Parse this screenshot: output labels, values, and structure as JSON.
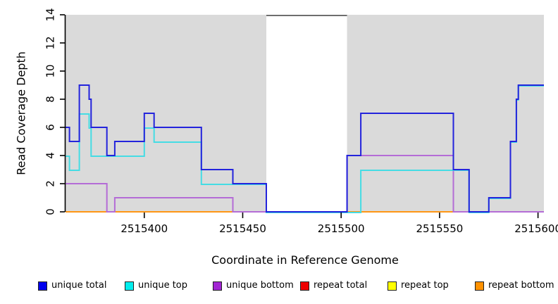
{
  "chart_data": {
    "type": "line",
    "subtype": "step",
    "title": "",
    "xlabel": "Coordinate in Reference Genome",
    "ylabel": "Read Coverage Depth",
    "xlim": [
      2515360,
      2515603
    ],
    "ylim": [
      0,
      14
    ],
    "x_ticks": [
      "2515400",
      "2515450",
      "2515500",
      "2515550",
      "2515600"
    ],
    "y_ticks": [
      "0",
      "2",
      "4",
      "6",
      "8",
      "10",
      "12",
      "14"
    ],
    "grid": false,
    "panel_bg": "#DADADA",
    "masked_region": {
      "x_start": 2515462,
      "x_end": 2515503,
      "fill": "#FFFFFF",
      "top_border_color": "#6E6E6E"
    },
    "series": [
      {
        "name": "unique total",
        "color": "#2323DC",
        "x_end": 2515603,
        "steps": [
          [
            2515360,
            6
          ],
          [
            2515362,
            5
          ],
          [
            2515367,
            9
          ],
          [
            2515372,
            8
          ],
          [
            2515373,
            6
          ],
          [
            2515381,
            4
          ],
          [
            2515385,
            5
          ],
          [
            2515400,
            7
          ],
          [
            2515405,
            6
          ],
          [
            2515429,
            3
          ],
          [
            2515445,
            2
          ],
          [
            2515462,
            0
          ],
          [
            2515503,
            4
          ],
          [
            2515510,
            7
          ],
          [
            2515557,
            3
          ],
          [
            2515565,
            0
          ],
          [
            2515575,
            1
          ],
          [
            2515586,
            5
          ],
          [
            2515589,
            8
          ],
          [
            2515590,
            9
          ]
        ]
      },
      {
        "name": "unique top",
        "color": "#45DCE4",
        "x_end": 2515603,
        "steps": [
          [
            2515360,
            4
          ],
          [
            2515362,
            3
          ],
          [
            2515367,
            7
          ],
          [
            2515372,
            6
          ],
          [
            2515373,
            4
          ],
          [
            2515400,
            6
          ],
          [
            2515405,
            5
          ],
          [
            2515429,
            2
          ],
          [
            2515462,
            0
          ],
          [
            2515510,
            3
          ],
          [
            2515565,
            0
          ],
          [
            2515575,
            1
          ],
          [
            2515586,
            5
          ],
          [
            2515589,
            8
          ],
          [
            2515590,
            9
          ]
        ]
      },
      {
        "name": "unique bottom",
        "color": "#B46CD6",
        "x_end": 2515603,
        "steps": [
          [
            2515360,
            2
          ],
          [
            2515381,
            0
          ],
          [
            2515385,
            1
          ],
          [
            2515445,
            0
          ],
          [
            2515503,
            4
          ],
          [
            2515557,
            0
          ]
        ]
      },
      {
        "name": "repeat total",
        "color": "#D6496A",
        "x_end": 2515603,
        "steps": [
          [
            2515360,
            0
          ]
        ]
      },
      {
        "name": "repeat top",
        "color": "#EDED1A",
        "x_end": 2515603,
        "steps": [
          [
            2515360,
            0
          ]
        ]
      },
      {
        "name": "repeat bottom",
        "color": "#FF9614",
        "x_end": 2515603,
        "steps": [
          [
            2515360,
            0
          ]
        ]
      }
    ],
    "draw_order": [
      "repeat top",
      "repeat total",
      "repeat bottom",
      "unique bottom",
      "unique top",
      "unique total"
    ],
    "legend": [
      {
        "label": "unique total",
        "color": "#0000EE"
      },
      {
        "label": "unique top",
        "color": "#00EEEE"
      },
      {
        "label": "unique bottom",
        "color": "#A226D3"
      },
      {
        "label": "repeat total",
        "color": "#EE0000"
      },
      {
        "label": "repeat top",
        "color": "#FFFF00"
      },
      {
        "label": "repeat bottom",
        "color": "#FF9100"
      }
    ],
    "legend_position": "bottom"
  }
}
